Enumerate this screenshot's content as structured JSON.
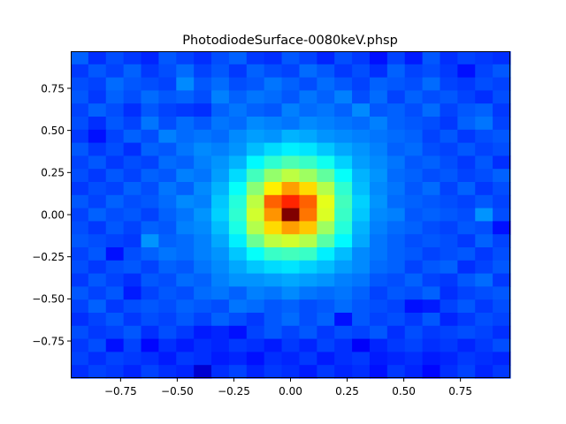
{
  "chart_data": {
    "type": "heatmap",
    "title": "PhotodiodeSurface-0080keV.phsp",
    "xlabel": "",
    "ylabel": "",
    "xlim": [
      -0.97,
      0.97
    ],
    "ylim": [
      -0.97,
      0.97
    ],
    "grid": false,
    "legend": "none",
    "colormap": "jet",
    "vmin": 0,
    "vmax": 1,
    "x_ticks": [
      {
        "value": -0.75,
        "label": "−0.75"
      },
      {
        "value": -0.5,
        "label": "−0.50"
      },
      {
        "value": -0.25,
        "label": "−0.25"
      },
      {
        "value": 0,
        "label": "0.00"
      },
      {
        "value": 0.25,
        "label": "0.25"
      },
      {
        "value": 0.5,
        "label": "0.50"
      },
      {
        "value": 0.75,
        "label": "0.75"
      }
    ],
    "y_ticks": [
      {
        "value": 0.75,
        "label": "0.75"
      },
      {
        "value": 0.5,
        "label": "0.50"
      },
      {
        "value": 0.25,
        "label": "0.25"
      },
      {
        "value": 0,
        "label": "0.00"
      },
      {
        "value": -0.25,
        "label": "−0.25"
      },
      {
        "value": -0.5,
        "label": "−0.50"
      },
      {
        "value": -0.75,
        "label": "−0.75"
      }
    ],
    "bins_x": 25,
    "bins_y": 25,
    "values_rows_top_to_bottom": [
      [
        0.22,
        0.17,
        0.2,
        0.18,
        0.16,
        0.21,
        0.19,
        0.17,
        0.2,
        0.22,
        0.18,
        0.17,
        0.21,
        0.19,
        0.16,
        0.2,
        0.18,
        0.14,
        0.19,
        0.15,
        0.21,
        0.17,
        0.19,
        0.18,
        0.17
      ],
      [
        0.18,
        0.21,
        0.19,
        0.22,
        0.18,
        0.2,
        0.23,
        0.19,
        0.21,
        0.18,
        0.22,
        0.2,
        0.19,
        0.23,
        0.21,
        0.18,
        0.2,
        0.17,
        0.22,
        0.19,
        0.2,
        0.18,
        0.14,
        0.19,
        0.21
      ],
      [
        0.2,
        0.19,
        0.23,
        0.21,
        0.2,
        0.19,
        0.26,
        0.21,
        0.23,
        0.2,
        0.21,
        0.24,
        0.22,
        0.2,
        0.23,
        0.21,
        0.19,
        0.22,
        0.21,
        0.2,
        0.23,
        0.19,
        0.18,
        0.2,
        0.19
      ],
      [
        0.21,
        0.18,
        0.22,
        0.2,
        0.23,
        0.21,
        0.22,
        0.2,
        0.25,
        0.22,
        0.24,
        0.23,
        0.21,
        0.24,
        0.22,
        0.25,
        0.2,
        0.23,
        0.19,
        0.22,
        0.2,
        0.21,
        0.19,
        0.17,
        0.2
      ],
      [
        0.19,
        0.22,
        0.2,
        0.17,
        0.21,
        0.19,
        0.18,
        0.17,
        0.22,
        0.24,
        0.22,
        0.21,
        0.25,
        0.23,
        0.24,
        0.22,
        0.26,
        0.21,
        0.22,
        0.2,
        0.23,
        0.19,
        0.21,
        0.22,
        0.18
      ],
      [
        0.2,
        0.17,
        0.21,
        0.19,
        0.24,
        0.2,
        0.23,
        0.21,
        0.24,
        0.23,
        0.26,
        0.25,
        0.24,
        0.26,
        0.25,
        0.24,
        0.23,
        0.25,
        0.22,
        0.21,
        0.2,
        0.18,
        0.22,
        0.24,
        0.19
      ],
      [
        0.18,
        0.14,
        0.19,
        0.22,
        0.2,
        0.25,
        0.23,
        0.24,
        0.23,
        0.26,
        0.28,
        0.27,
        0.3,
        0.29,
        0.27,
        0.26,
        0.25,
        0.24,
        0.23,
        0.22,
        0.19,
        0.21,
        0.18,
        0.2,
        0.21
      ],
      [
        0.21,
        0.18,
        0.2,
        0.17,
        0.22,
        0.21,
        0.24,
        0.26,
        0.25,
        0.27,
        0.31,
        0.34,
        0.36,
        0.35,
        0.32,
        0.29,
        0.27,
        0.25,
        0.22,
        0.23,
        0.2,
        0.19,
        0.21,
        0.19,
        0.2
      ],
      [
        0.19,
        0.21,
        0.18,
        0.2,
        0.19,
        0.23,
        0.22,
        0.25,
        0.27,
        0.3,
        0.37,
        0.42,
        0.45,
        0.43,
        0.39,
        0.33,
        0.28,
        0.26,
        0.24,
        0.21,
        0.22,
        0.2,
        0.18,
        0.21,
        0.17
      ],
      [
        0.2,
        0.18,
        0.21,
        0.19,
        0.22,
        0.21,
        0.25,
        0.24,
        0.28,
        0.34,
        0.44,
        0.52,
        0.56,
        0.53,
        0.47,
        0.38,
        0.3,
        0.27,
        0.23,
        0.22,
        0.2,
        0.21,
        0.19,
        0.2,
        0.22
      ],
      [
        0.18,
        0.2,
        0.19,
        0.22,
        0.2,
        0.24,
        0.22,
        0.26,
        0.3,
        0.38,
        0.51,
        0.64,
        0.72,
        0.66,
        0.55,
        0.42,
        0.31,
        0.26,
        0.24,
        0.21,
        0.23,
        0.19,
        0.22,
        0.18,
        0.2
      ],
      [
        0.21,
        0.19,
        0.22,
        0.2,
        0.21,
        0.23,
        0.26,
        0.25,
        0.32,
        0.41,
        0.56,
        0.78,
        0.84,
        0.78,
        0.6,
        0.44,
        0.33,
        0.27,
        0.23,
        0.22,
        0.21,
        0.2,
        0.19,
        0.21,
        0.19
      ],
      [
        0.19,
        0.22,
        0.2,
        0.21,
        0.19,
        0.22,
        0.24,
        0.27,
        0.33,
        0.42,
        0.58,
        0.73,
        1.0,
        0.76,
        0.59,
        0.43,
        0.32,
        0.26,
        0.25,
        0.21,
        0.22,
        0.21,
        0.2,
        0.27,
        0.2
      ],
      [
        0.2,
        0.18,
        0.21,
        0.19,
        0.22,
        0.21,
        0.25,
        0.26,
        0.31,
        0.4,
        0.55,
        0.66,
        0.72,
        0.68,
        0.53,
        0.41,
        0.3,
        0.25,
        0.23,
        0.22,
        0.2,
        0.19,
        0.21,
        0.2,
        0.14
      ],
      [
        0.21,
        0.2,
        0.19,
        0.18,
        0.27,
        0.22,
        0.23,
        0.25,
        0.29,
        0.36,
        0.48,
        0.56,
        0.58,
        0.55,
        0.46,
        0.37,
        0.29,
        0.24,
        0.22,
        0.2,
        0.21,
        0.2,
        0.18,
        0.22,
        0.19
      ],
      [
        0.19,
        0.21,
        0.14,
        0.2,
        0.22,
        0.24,
        0.23,
        0.25,
        0.27,
        0.32,
        0.38,
        0.43,
        0.44,
        0.43,
        0.36,
        0.31,
        0.26,
        0.24,
        0.22,
        0.21,
        0.19,
        0.2,
        0.21,
        0.18,
        0.2
      ],
      [
        0.2,
        0.18,
        0.2,
        0.21,
        0.19,
        0.22,
        0.21,
        0.24,
        0.26,
        0.29,
        0.32,
        0.34,
        0.35,
        0.33,
        0.31,
        0.28,
        0.26,
        0.23,
        0.22,
        0.19,
        0.21,
        0.22,
        0.17,
        0.19,
        0.21
      ],
      [
        0.18,
        0.21,
        0.19,
        0.17,
        0.21,
        0.2,
        0.23,
        0.22,
        0.25,
        0.27,
        0.27,
        0.28,
        0.29,
        0.28,
        0.27,
        0.25,
        0.24,
        0.21,
        0.2,
        0.22,
        0.19,
        0.18,
        0.21,
        0.23,
        0.18
      ],
      [
        0.21,
        0.19,
        0.21,
        0.15,
        0.19,
        0.21,
        0.2,
        0.23,
        0.24,
        0.22,
        0.25,
        0.24,
        0.26,
        0.24,
        0.23,
        0.24,
        0.22,
        0.19,
        0.21,
        0.2,
        0.22,
        0.17,
        0.19,
        0.2,
        0.21
      ],
      [
        0.19,
        0.22,
        0.18,
        0.2,
        0.21,
        0.2,
        0.22,
        0.21,
        0.2,
        0.24,
        0.23,
        0.21,
        0.22,
        0.2,
        0.21,
        0.23,
        0.21,
        0.2,
        0.19,
        0.14,
        0.15,
        0.19,
        0.21,
        0.18,
        0.2
      ],
      [
        0.17,
        0.19,
        0.21,
        0.18,
        0.2,
        0.19,
        0.21,
        0.19,
        0.22,
        0.2,
        0.18,
        0.21,
        0.23,
        0.2,
        0.22,
        0.14,
        0.21,
        0.19,
        0.2,
        0.18,
        0.21,
        0.16,
        0.18,
        0.2,
        0.19
      ],
      [
        0.2,
        0.18,
        0.19,
        0.21,
        0.17,
        0.2,
        0.18,
        0.15,
        0.16,
        0.14,
        0.19,
        0.21,
        0.19,
        0.21,
        0.18,
        0.2,
        0.19,
        0.21,
        0.17,
        0.2,
        0.18,
        0.19,
        0.2,
        0.19,
        0.17
      ],
      [
        0.18,
        0.2,
        0.14,
        0.19,
        0.13,
        0.17,
        0.15,
        0.17,
        0.16,
        0.18,
        0.17,
        0.15,
        0.18,
        0.16,
        0.19,
        0.17,
        0.12,
        0.16,
        0.18,
        0.19,
        0.17,
        0.18,
        0.16,
        0.18,
        0.2
      ],
      [
        0.19,
        0.17,
        0.19,
        0.18,
        0.17,
        0.15,
        0.18,
        0.17,
        0.15,
        0.16,
        0.14,
        0.17,
        0.16,
        0.18,
        0.15,
        0.17,
        0.18,
        0.15,
        0.16,
        0.17,
        0.15,
        0.16,
        0.18,
        0.17,
        0.16
      ],
      [
        0.17,
        0.19,
        0.18,
        0.16,
        0.19,
        0.17,
        0.16,
        0.08,
        0.17,
        0.19,
        0.16,
        0.18,
        0.17,
        0.15,
        0.18,
        0.16,
        0.17,
        0.14,
        0.18,
        0.16,
        0.13,
        0.17,
        0.19,
        0.16,
        0.18
      ]
    ]
  }
}
